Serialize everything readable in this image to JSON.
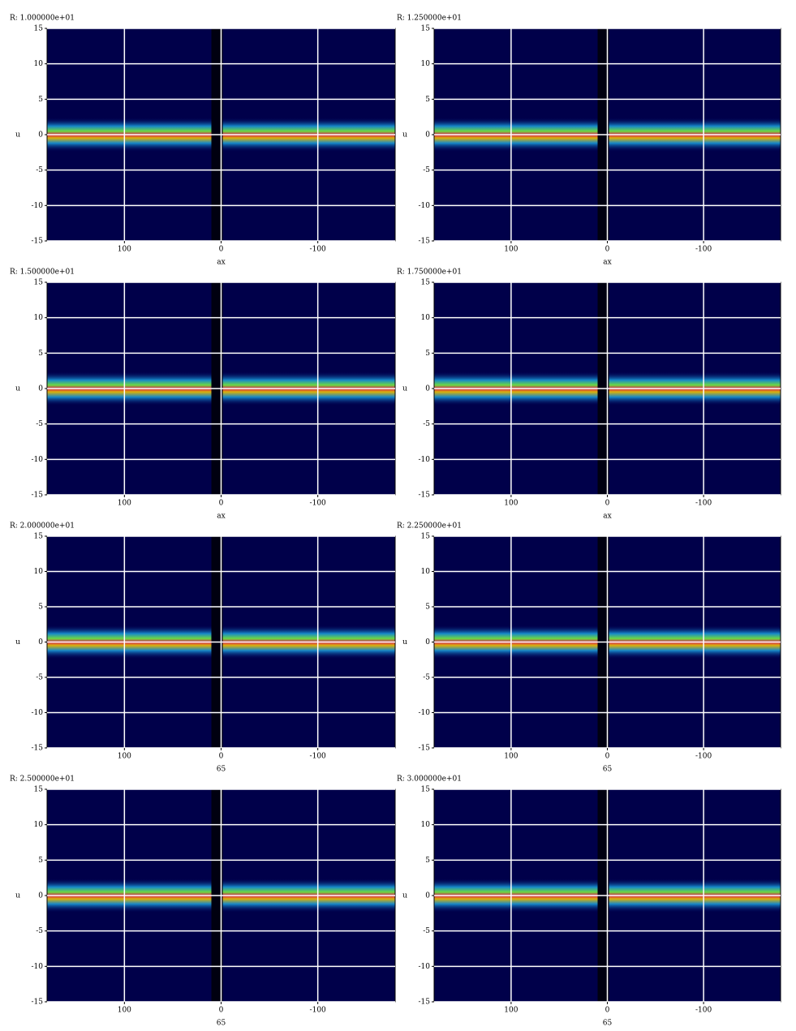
{
  "chart_data": [
    {
      "type": "heatmap",
      "title": "R: 1.000000e+01",
      "xlabel": "ax",
      "ylabel": "u",
      "xlim": [
        180,
        -180
      ],
      "ylim": [
        -15,
        15
      ],
      "xticks": [
        100,
        0,
        -100
      ],
      "yticks": [
        -15,
        -10,
        -5,
        0,
        5,
        10,
        15
      ],
      "grid": true
    },
    {
      "type": "heatmap",
      "title": "R: 1.250000e+01",
      "xlabel": "ax",
      "ylabel": "u",
      "xlim": [
        180,
        -180
      ],
      "ylim": [
        -15,
        15
      ],
      "xticks": [
        100,
        0,
        -100
      ],
      "yticks": [
        -15,
        -10,
        -5,
        0,
        5,
        10,
        15
      ],
      "grid": true
    },
    {
      "type": "heatmap",
      "title": "R: 1.500000e+01",
      "xlabel": "ax",
      "ylabel": "u",
      "xlim": [
        180,
        -180
      ],
      "ylim": [
        -15,
        15
      ],
      "xticks": [
        100,
        0,
        -100
      ],
      "yticks": [
        -15,
        -10,
        -5,
        0,
        5,
        10,
        15
      ],
      "grid": true
    },
    {
      "type": "heatmap",
      "title": "R: 1.750000e+01",
      "xlabel": "ax",
      "ylabel": "u",
      "xlim": [
        180,
        -180
      ],
      "ylim": [
        -15,
        15
      ],
      "xticks": [
        100,
        0,
        -100
      ],
      "yticks": [
        -15,
        -10,
        -5,
        0,
        5,
        10,
        15
      ],
      "grid": true
    },
    {
      "type": "heatmap",
      "title": "R: 2.000000e+01",
      "xlabel": "65",
      "ylabel": "u",
      "xlim": [
        180,
        -180
      ],
      "ylim": [
        -15,
        15
      ],
      "xticks": [
        100,
        0,
        -100
      ],
      "yticks": [
        -15,
        -10,
        -5,
        0,
        5,
        10,
        15
      ],
      "grid": true
    },
    {
      "type": "heatmap",
      "title": "R: 2.250000e+01",
      "xlabel": "65",
      "ylabel": "u",
      "xlim": [
        180,
        -180
      ],
      "ylim": [
        -15,
        15
      ],
      "xticks": [
        100,
        0,
        -100
      ],
      "yticks": [
        -15,
        -10,
        -5,
        0,
        5,
        10,
        15
      ],
      "grid": true
    },
    {
      "type": "heatmap",
      "title": "R: 2.500000e+01",
      "xlabel": "65",
      "ylabel": "u",
      "xlim": [
        180,
        -180
      ],
      "ylim": [
        -15,
        15
      ],
      "xticks": [
        100,
        0,
        -100
      ],
      "yticks": [
        -15,
        -10,
        -5,
        0,
        5,
        10,
        15
      ],
      "grid": true
    },
    {
      "type": "heatmap",
      "title": "R: 3.000000e+01",
      "xlabel": "65",
      "ylabel": "u",
      "xlim": [
        180,
        -180
      ],
      "ylim": [
        -15,
        15
      ],
      "xticks": [
        100,
        0,
        -100
      ],
      "yticks": [
        -15,
        -10,
        -5,
        0,
        5,
        10,
        15
      ],
      "grid": true
    }
  ]
}
